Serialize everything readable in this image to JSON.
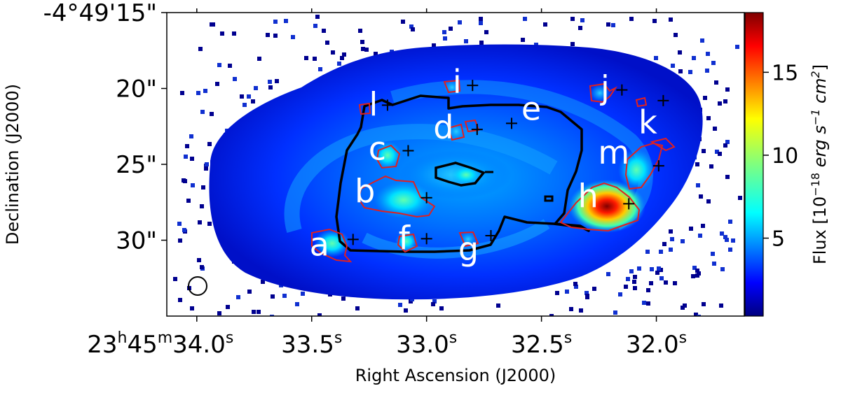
{
  "chart_data": {
    "type": "heatmap",
    "title": "",
    "xlabel": "Right Ascension (J2000)",
    "ylabel": "Declination (J2000)",
    "x_ticks": [
      {
        "value": 34.0,
        "label_main": "23",
        "sup1": "h",
        "mid": "45",
        "sup2": "m",
        "tail": "34.0",
        "sup3": "s"
      },
      {
        "value": 33.5,
        "label_main": "33.5",
        "sup3": "s"
      },
      {
        "value": 33.0,
        "label_main": "33.0",
        "sup3": "s"
      },
      {
        "value": 32.5,
        "label_main": "32.5",
        "sup3": "s"
      },
      {
        "value": 32.0,
        "label_main": "32.0",
        "sup3": "s"
      }
    ],
    "y_ticks": [
      {
        "value": 15,
        "label": "-4°49'15\""
      },
      {
        "value": 20,
        "label": "20\""
      },
      {
        "value": 25,
        "label": "25\""
      },
      {
        "value": 30,
        "label": "30\""
      }
    ],
    "xlim_seconds": [
      34.1,
      31.7
    ],
    "ylim_arcsec": [
      35,
      15
    ],
    "colorbar": {
      "label_main": "Flux [10",
      "label_exp1": "−18",
      "label_units": " erg s",
      "label_exp2": "−1",
      "label_units2": " cm",
      "label_exp3": "2",
      "label_close": "]",
      "ticks": [
        5,
        10,
        15
      ],
      "range": [
        0.3,
        18.6
      ],
      "colormap": "jet"
    },
    "regions": [
      {
        "label": "a",
        "ra": 33.32,
        "dec": 29.95
      },
      {
        "label": "b",
        "ra": 33.0,
        "dec": 27.2
      },
      {
        "label": "c",
        "ra": 33.08,
        "dec": 24.1
      },
      {
        "label": "d",
        "ra": 32.78,
        "dec": 22.7
      },
      {
        "label": "e",
        "ra": 32.63,
        "dec": 22.3
      },
      {
        "label": "f",
        "ra": 33.0,
        "dec": 29.9
      },
      {
        "label": "g",
        "ra": 32.72,
        "dec": 29.7
      },
      {
        "label": "h",
        "ra": 32.12,
        "dec": 27.6
      },
      {
        "label": "i",
        "ra": 32.8,
        "dec": 19.8
      },
      {
        "label": "j",
        "ra": 32.15,
        "dec": 20.1
      },
      {
        "label": "k",
        "ra": 31.97,
        "dec": 20.8
      },
      {
        "label": "l",
        "ra": 33.17,
        "dec": 21.1
      },
      {
        "label": "m",
        "ra": 31.99,
        "dec": 25.1
      }
    ],
    "beam_marker": "circle",
    "grid": false,
    "legend": "none"
  }
}
